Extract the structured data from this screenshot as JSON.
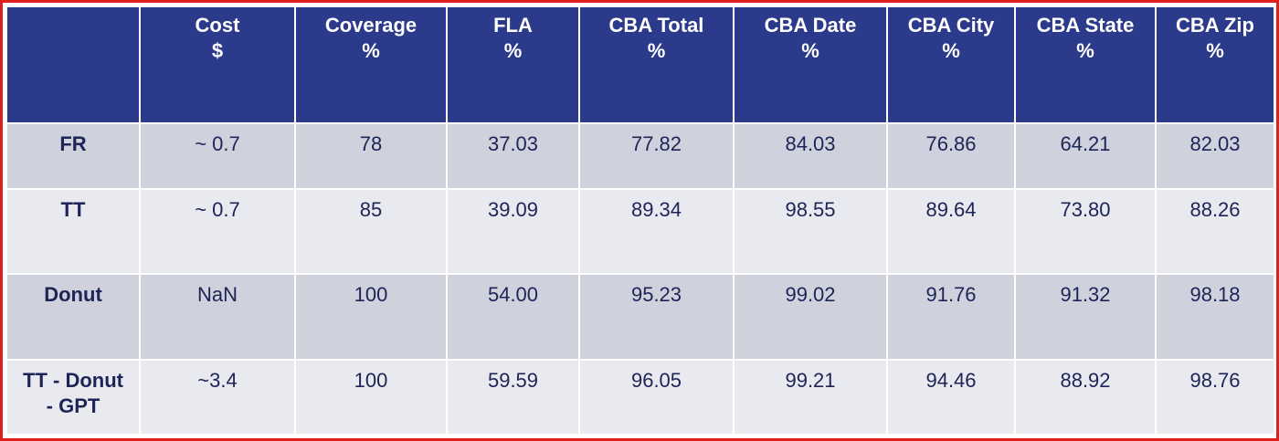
{
  "table": {
    "headers": [
      {
        "line1": "",
        "line2": ""
      },
      {
        "line1": "Cost",
        "line2": "$"
      },
      {
        "line1": "Coverage",
        "line2": "%"
      },
      {
        "line1": "FLA",
        "line2": "%"
      },
      {
        "line1": "CBA Total",
        "line2": "%"
      },
      {
        "line1": "CBA Date",
        "line2": "%"
      },
      {
        "line1": "CBA City",
        "line2": "%"
      },
      {
        "line1": "CBA State",
        "line2": "%"
      },
      {
        "line1": "CBA Zip",
        "line2": "%"
      }
    ],
    "rows": [
      {
        "label_lines": [
          "FR"
        ],
        "cells": [
          "~ 0.7",
          "78",
          "37.03",
          "77.82",
          "84.03",
          "76.86",
          "64.21",
          "82.03"
        ]
      },
      {
        "label_lines": [
          "TT"
        ],
        "cells": [
          "~ 0.7",
          "85",
          "39.09",
          "89.34",
          "98.55",
          "89.64",
          "73.80",
          "88.26"
        ]
      },
      {
        "label_lines": [
          "Donut"
        ],
        "cells": [
          "NaN",
          "100",
          "54.00",
          "95.23",
          "99.02",
          "91.76",
          "91.32",
          "98.18"
        ]
      },
      {
        "label_lines": [
          "TT - Donut",
          "- GPT"
        ],
        "cells": [
          "~3.4",
          "100",
          "59.59",
          "96.05",
          "99.21",
          "94.46",
          "88.92",
          "98.76"
        ]
      }
    ]
  },
  "colors": {
    "header_bg": "#2b3a8a",
    "row_odd_bg": "#cfd2dd",
    "row_even_bg": "#e9eaf0",
    "border": "#e0201c"
  }
}
